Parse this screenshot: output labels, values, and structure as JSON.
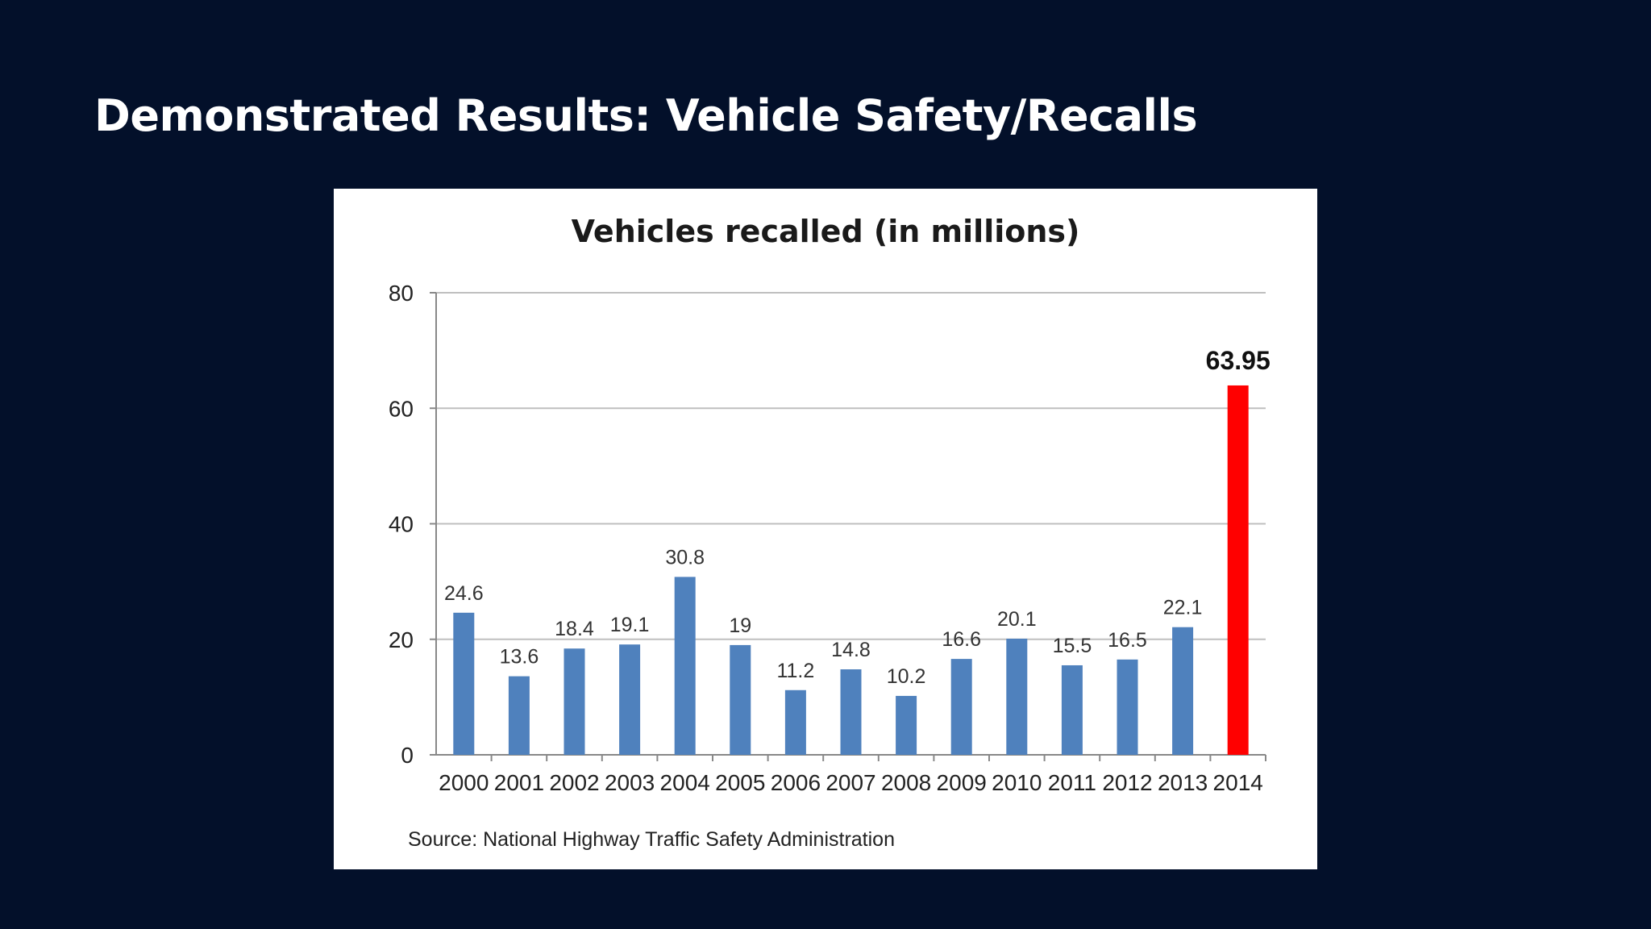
{
  "slide": {
    "title": "Demonstrated Results: Vehicle Safety/Recalls",
    "background_color": "#03102a"
  },
  "chart_data": {
    "type": "bar",
    "title": "Vehicles recalled (in millions)",
    "xlabel": "",
    "ylabel": "",
    "ylim": [
      0,
      80
    ],
    "yticks": [
      0,
      20,
      40,
      60,
      80
    ],
    "grid": true,
    "categories": [
      "2000",
      "2001",
      "2002",
      "2003",
      "2004",
      "2005",
      "2006",
      "2007",
      "2008",
      "2009",
      "2010",
      "2011",
      "2012",
      "2013",
      "2014"
    ],
    "values": [
      24.6,
      13.6,
      18.4,
      19.1,
      30.8,
      19,
      11.2,
      14.8,
      10.2,
      16.6,
      20.1,
      15.5,
      16.5,
      22.1,
      63.95
    ],
    "data_labels": [
      "24.6",
      "13.6",
      "18.4",
      "19.1",
      "30.8",
      "19",
      "11.2",
      "14.8",
      "10.2",
      "16.6",
      "20.1",
      "15.5",
      "16.5",
      "22.1",
      "63.95"
    ],
    "highlight_index": 14,
    "colors": {
      "bar": "#4f81bd",
      "highlight": "#ff0000",
      "grid": "#bfbfbf"
    },
    "source": "Source:  National Highway Traffic Safety Administration"
  }
}
